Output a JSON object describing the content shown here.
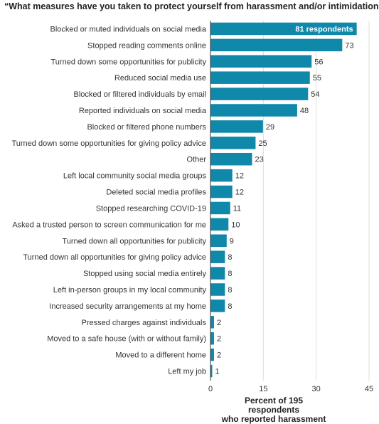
{
  "chart_data": {
    "type": "bar",
    "orientation": "horizontal",
    "title": "“What measures have you taken to protect yourself from harassment and/or intimidation?”",
    "xlabel_line1": "Percent of 195 respondents",
    "xlabel_line2": "who reported harassment",
    "xlim": [
      0,
      45
    ],
    "xticks": [
      "0",
      "15",
      "30",
      "45"
    ],
    "grid": true,
    "bar_color": "#0f88aa",
    "categories": [
      "Blocked or muted individuals on social media",
      "Stopped reading comments online",
      "Turned down some opportunities for publicity",
      "Reduced social media use",
      "Blocked or filtered individuals by email",
      "Reported individuals on social media",
      "Blocked or filtered phone numbers",
      "Turned down some opportunities for giving policy advice",
      "Other",
      "Left local community social media groups",
      "Deleted social media profiles",
      "Stopped researching COVID-19",
      "Asked a trusted person to screen communication for me",
      "Turned down all opportunities for publicity",
      "Turned down all opportunities for giving policy advice",
      "Stopped using social media entirely",
      "Left in-person groups in my local community",
      "Increased security arrangements at my home",
      "Pressed charges against individuals",
      "Moved to a safe house (with or without family)",
      "Moved to a different home",
      "Left my job"
    ],
    "respondents": [
      81,
      73,
      56,
      55,
      54,
      48,
      29,
      25,
      23,
      12,
      12,
      11,
      10,
      9,
      8,
      8,
      8,
      8,
      2,
      2,
      2,
      1
    ],
    "value_labels": [
      "81 respondents",
      "73",
      "56",
      "55",
      "54",
      "48",
      "29",
      "25",
      "23",
      "12",
      "12",
      "11",
      "10",
      "9",
      "8",
      "8",
      "8",
      "8",
      "2",
      "2",
      "2",
      "1"
    ],
    "percent_values": [
      41.5,
      37.4,
      28.7,
      28.2,
      27.7,
      24.6,
      14.9,
      12.8,
      11.8,
      6.2,
      6.2,
      5.6,
      5.1,
      4.6,
      4.1,
      4.1,
      4.1,
      4.1,
      1.0,
      1.0,
      1.0,
      0.5
    ]
  }
}
